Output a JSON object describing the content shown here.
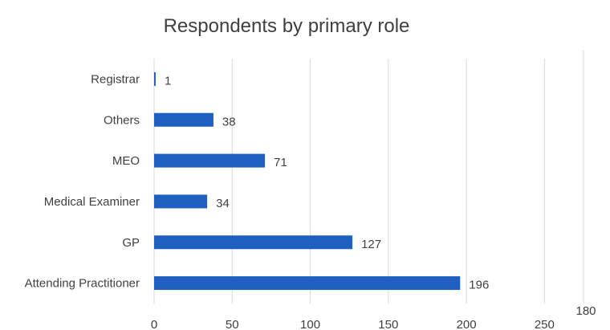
{
  "chart_data": {
    "type": "bar",
    "orientation": "horizontal",
    "title": "Respondents by primary role",
    "xlabel": "",
    "ylabel": "",
    "categories": [
      "Registrar",
      "Others",
      "MEO",
      "Medical Examiner",
      "GP",
      "Attending Practitioner"
    ],
    "values": [
      1,
      38,
      71,
      34,
      127,
      196
    ],
    "data_labels": [
      "1",
      "38",
      "71",
      "34",
      "127",
      "196"
    ],
    "x_ticks": [
      0,
      50,
      100,
      150,
      200,
      250
    ],
    "x_tick_labels": [
      "0",
      "50",
      "100",
      "150",
      "200",
      "250"
    ],
    "xlim": [
      0,
      275
    ],
    "grid": true,
    "legend": "none",
    "extra_annotation": "180",
    "bar_color": "#1f5fbf",
    "grid_color": "#d9d9d9"
  }
}
